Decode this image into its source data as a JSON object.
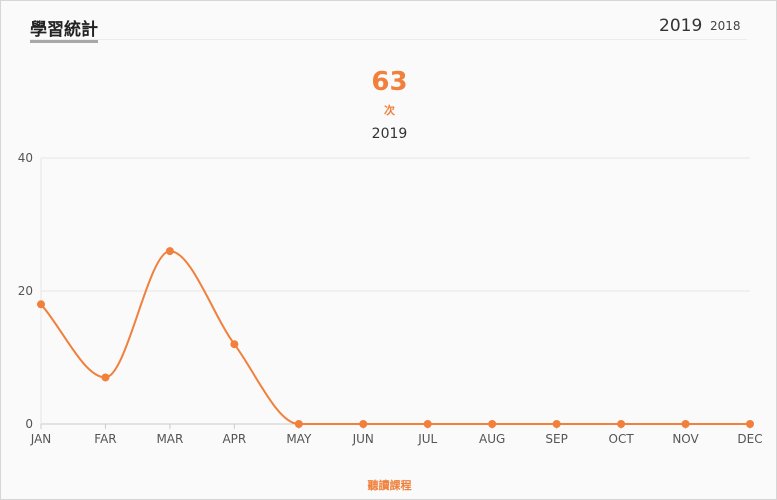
{
  "header": {
    "title": "學習統計",
    "years": [
      {
        "label": "2019",
        "active": true
      },
      {
        "label": "2018",
        "active": false
      }
    ]
  },
  "summary": {
    "total": "63",
    "unit": "次"
  },
  "colors": {
    "accent": "#f0803c",
    "grid": "#e6e6e6",
    "axis": "#cccccc"
  },
  "chart_data": {
    "type": "line",
    "title": "2019",
    "categories": [
      "JAN",
      "FAR",
      "MAR",
      "APR",
      "MAY",
      "JUN",
      "JUL",
      "AUG",
      "SEP",
      "OCT",
      "NOV",
      "DEC"
    ],
    "series": [
      {
        "name": "聽讀課程",
        "values": [
          18,
          7,
          26,
          12,
          0,
          0,
          0,
          0,
          0,
          0,
          0,
          0
        ]
      }
    ],
    "yticks": [
      0,
      20,
      40
    ],
    "ylim": [
      0,
      40
    ],
    "smooth": true,
    "grid": true,
    "legend": "bottom"
  }
}
